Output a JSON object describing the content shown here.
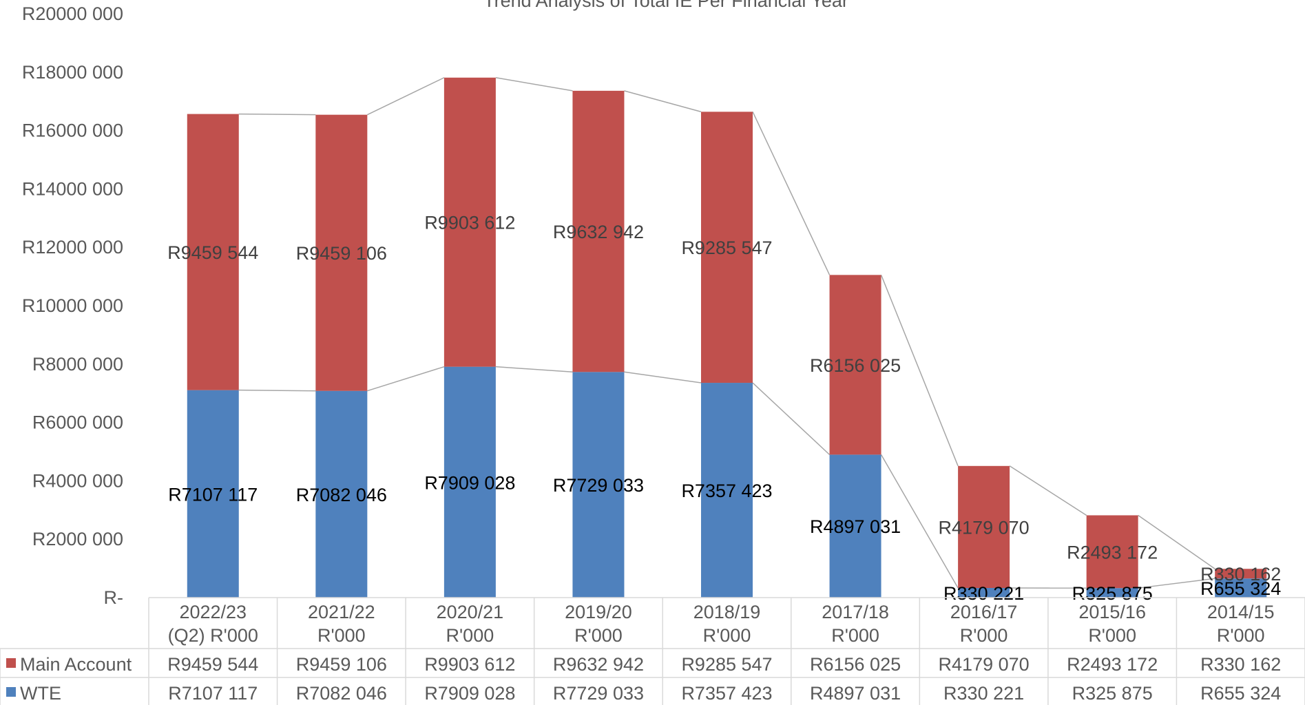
{
  "chart_data": {
    "type": "bar",
    "stacked": true,
    "title": "Trend Analysis of Total IE Per Financial Year",
    "categories": [
      [
        "2022/23",
        "(Q2) R'000"
      ],
      [
        "2021/22",
        "R'000"
      ],
      [
        "2020/21",
        "R'000"
      ],
      [
        "2019/20",
        "R'000"
      ],
      [
        "2018/19",
        "R'000"
      ],
      [
        "2017/18",
        "R'000"
      ],
      [
        "2016/17",
        "R'000"
      ],
      [
        "2015/16",
        "R'000"
      ],
      [
        "2014/15",
        "R'000"
      ]
    ],
    "series": [
      {
        "name": "WTE",
        "color": "#4f81bd",
        "values": [
          7107117,
          7082046,
          7909028,
          7729033,
          7357423,
          4897031,
          330221,
          325875,
          655324
        ],
        "labels": [
          "R7107 117",
          "R7082 046",
          "R7909 028",
          "R7729 033",
          "R7357 423",
          "R4897 031",
          "R330 221",
          "R325 875",
          "R655 324"
        ]
      },
      {
        "name": "Main Account",
        "color": "#c0504d",
        "values": [
          9459544,
          9459106,
          9903612,
          9632942,
          9285547,
          6156025,
          4179070,
          2493172,
          330162
        ],
        "labels": [
          "R9459 544",
          "R9459 106",
          "R9903 612",
          "R9632 942",
          "R9285 547",
          "R6156 025",
          "R4179 070",
          "R2493 172",
          "R330 162"
        ]
      }
    ],
    "ylim": [
      0,
      20000000
    ],
    "yticks": [
      {
        "value": 0,
        "label": "R-"
      },
      {
        "value": 2000000,
        "label": "R2000 000"
      },
      {
        "value": 4000000,
        "label": "R4000 000"
      },
      {
        "value": 6000000,
        "label": "R6000 000"
      },
      {
        "value": 8000000,
        "label": "R8000 000"
      },
      {
        "value": 10000000,
        "label": "R10000 000"
      },
      {
        "value": 12000000,
        "label": "R12000 000"
      },
      {
        "value": 14000000,
        "label": "R14000 000"
      },
      {
        "value": 16000000,
        "label": "R16000 000"
      },
      {
        "value": 18000000,
        "label": "R18000 000"
      },
      {
        "value": 20000000,
        "label": "R20000 000"
      }
    ],
    "series_lines": true,
    "data_table": true,
    "table_rows": [
      "Main Account",
      "WTE"
    ]
  }
}
